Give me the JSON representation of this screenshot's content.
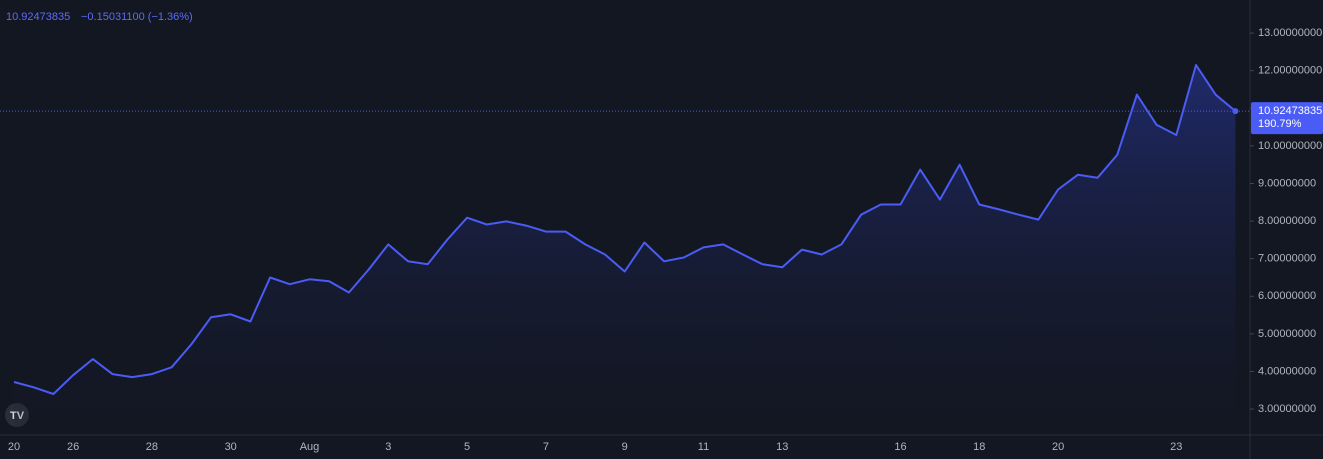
{
  "chart_data": {
    "type": "line",
    "legend_price": "10.92473835",
    "legend_change": "−0.15031100 (−1.36%)",
    "categories": [
      "20",
      null,
      null,
      "26",
      null,
      null,
      null,
      "28",
      null,
      null,
      null,
      "30",
      null,
      null,
      null,
      "Aug",
      null,
      null,
      null,
      "3",
      null,
      null,
      null,
      "5",
      null,
      null,
      null,
      "7",
      null,
      null,
      null,
      "9",
      null,
      null,
      null,
      "11",
      null,
      null,
      null,
      "13",
      null,
      null,
      null,
      null,
      null,
      "16",
      null,
      null,
      null,
      "18",
      null,
      null,
      null,
      "20",
      null,
      null,
      null,
      null,
      null,
      "23",
      null,
      null,
      null
    ],
    "values": [
      3.72,
      3.58,
      3.4,
      3.9,
      4.33,
      3.93,
      3.85,
      3.93,
      4.11,
      4.72,
      5.44,
      5.52,
      5.33,
      6.5,
      6.32,
      6.45,
      6.4,
      6.1,
      6.71,
      7.38,
      6.93,
      6.85,
      7.51,
      8.09,
      7.91,
      7.99,
      7.88,
      7.72,
      7.72,
      7.38,
      7.11,
      6.66,
      7.43,
      6.93,
      7.03,
      7.3,
      7.38,
      7.11,
      6.85,
      6.77,
      7.24,
      7.11,
      7.38,
      8.17,
      8.44,
      8.44,
      9.37,
      8.57,
      9.5,
      8.44,
      8.31,
      8.17,
      8.04,
      8.84,
      9.23,
      9.15,
      9.76,
      11.36,
      10.56,
      10.29,
      12.15,
      11.36,
      10.92473835
    ],
    "color": "#4a5cf5",
    "ylim": [
      2.31,
      13.88
    ],
    "yticks": [
      {
        "value": 3,
        "label": "3.00000000"
      },
      {
        "value": 4,
        "label": "4.00000000"
      },
      {
        "value": 5,
        "label": "5.00000000"
      },
      {
        "value": 6,
        "label": "6.00000000"
      },
      {
        "value": 7,
        "label": "7.00000000"
      },
      {
        "value": 8,
        "label": "8.00000000"
      },
      {
        "value": 9,
        "label": "9.00000000"
      },
      {
        "value": 10,
        "label": "10.00000000"
      },
      {
        "value": 11,
        "label": "11.00000000"
      },
      {
        "value": 12,
        "label": "12.00000000"
      },
      {
        "value": 13,
        "label": "13.00000000"
      }
    ],
    "price_line": {
      "value": 10.92473835,
      "label": "10.92473835",
      "change_label": "190.79%"
    }
  }
}
